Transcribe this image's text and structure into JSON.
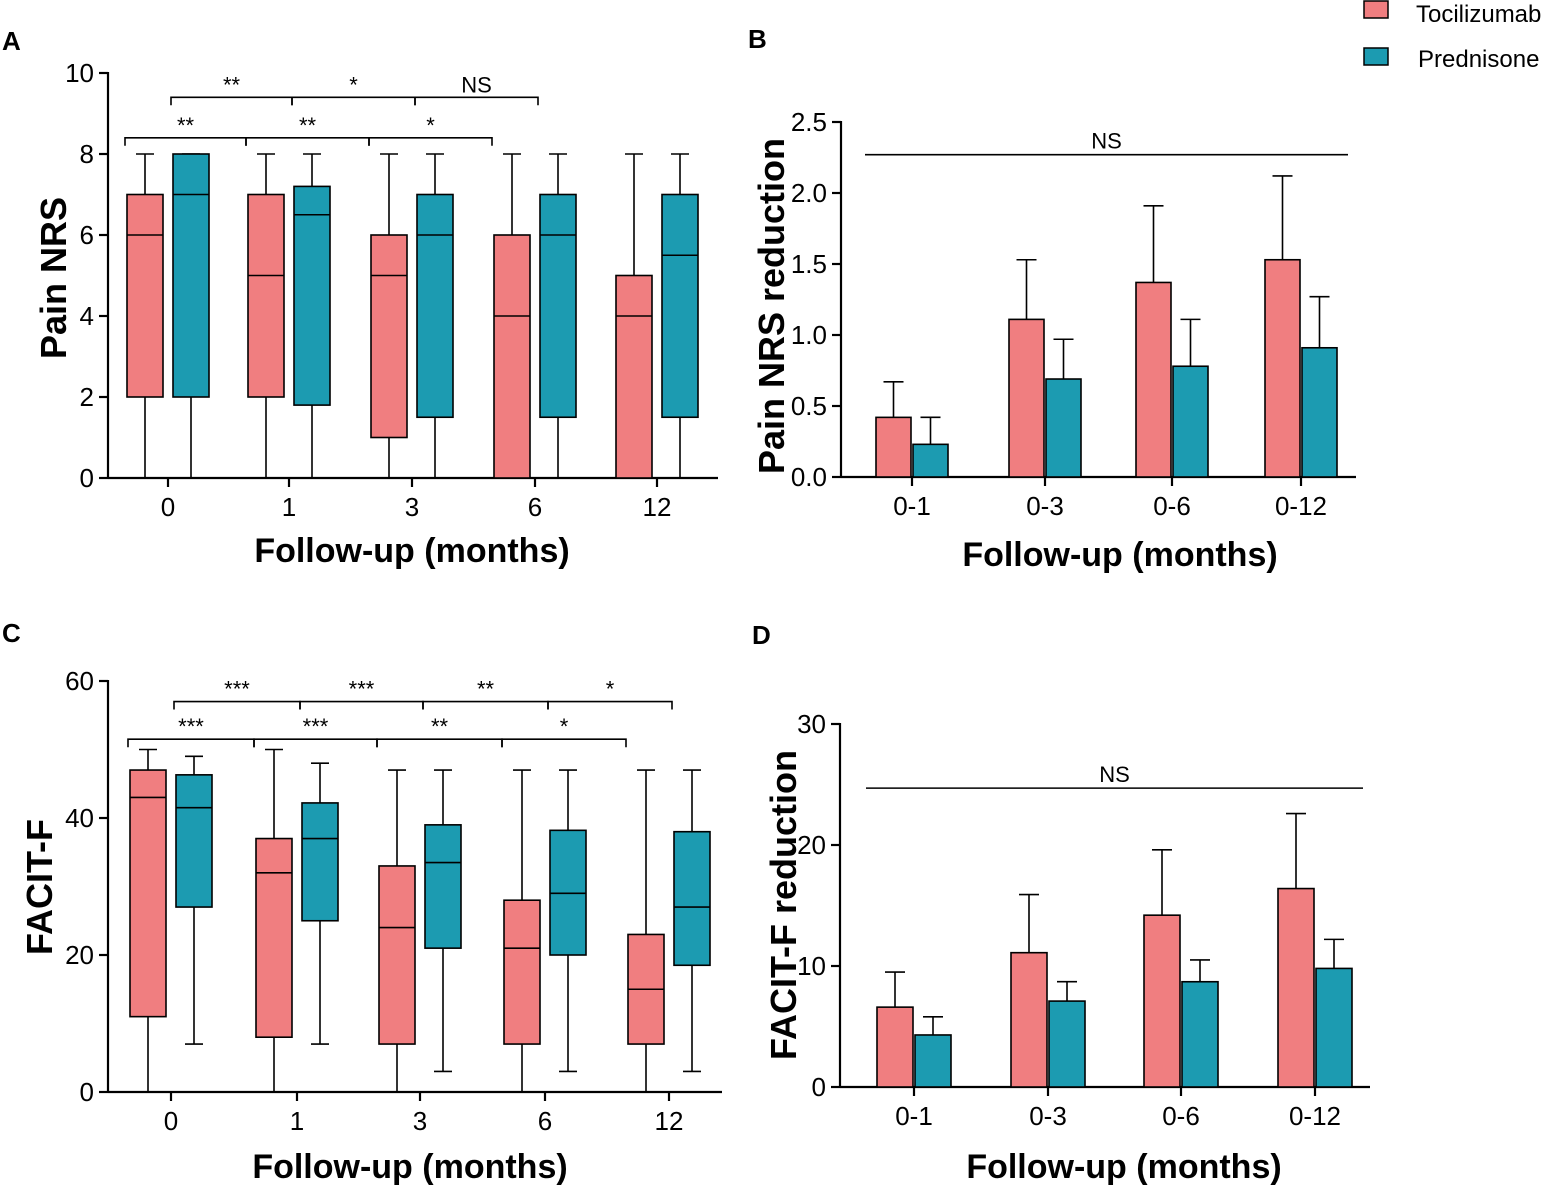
{
  "colors": {
    "tocilizumab": "#f07e80",
    "prednisone": "#1c9bb1",
    "stroke": "#000000"
  },
  "legend": {
    "items": [
      {
        "label": "Tocilizumab",
        "series": "tocilizumab"
      },
      {
        "label": "Prednisone",
        "series": "prednisone"
      }
    ]
  },
  "chart_data": [
    {
      "panel": "A",
      "type": "box",
      "ylabel": "Pain NRS",
      "xlabel": "Follow-up (months)",
      "ylim": [
        0,
        10
      ],
      "yticks": [
        0,
        2,
        4,
        6,
        8,
        10
      ],
      "categories": [
        "0",
        "1",
        "3",
        "6",
        "12"
      ],
      "series": [
        {
          "name": "Tocilizumab",
          "boxes": [
            {
              "min": 0,
              "q1": 2,
              "median": 6,
              "q3": 7,
              "max": 8
            },
            {
              "min": 0,
              "q1": 2,
              "median": 5,
              "q3": 7,
              "max": 8
            },
            {
              "min": 0,
              "q1": 1,
              "median": 5,
              "q3": 6,
              "max": 8
            },
            {
              "min": 0,
              "q1": 0,
              "median": 4,
              "q3": 6,
              "max": 8
            },
            {
              "min": 0,
              "q1": 0,
              "median": 4,
              "q3": 5,
              "max": 8
            }
          ]
        },
        {
          "name": "Prednisone",
          "boxes": [
            {
              "min": 0,
              "q1": 2,
              "median": 7,
              "q3": 8,
              "max": 8
            },
            {
              "min": 0,
              "q1": 1.8,
              "median": 6.5,
              "q3": 7.2,
              "max": 8
            },
            {
              "min": 0,
              "q1": 1.5,
              "median": 6,
              "q3": 7,
              "max": 8
            },
            {
              "min": 0,
              "q1": 1.5,
              "median": 6,
              "q3": 7,
              "max": 8
            },
            {
              "min": 0,
              "q1": 1.5,
              "median": 5.5,
              "q3": 7,
              "max": 8
            }
          ]
        }
      ],
      "significance": [
        {
          "from": [
            0,
            1
          ],
          "to": [
            1,
            1
          ],
          "level": 9.4,
          "label": "**"
        },
        {
          "from": [
            1,
            1
          ],
          "to": [
            2,
            1
          ],
          "level": 9.4,
          "label": "*"
        },
        {
          "from": [
            2,
            1
          ],
          "to": [
            3,
            1
          ],
          "level": 9.4,
          "label": "NS"
        },
        {
          "from": [
            0,
            0
          ],
          "to": [
            1,
            0
          ],
          "level": 8.4,
          "label": "**"
        },
        {
          "from": [
            1,
            0
          ],
          "to": [
            2,
            0
          ],
          "level": 8.4,
          "label": "**"
        },
        {
          "from": [
            2,
            0
          ],
          "to": [
            3,
            0
          ],
          "level": 8.4,
          "label": "*"
        }
      ]
    },
    {
      "panel": "B",
      "type": "bar",
      "ylabel": "Pain NRS reduction",
      "xlabel": "Follow-up (months)",
      "ylim": [
        0,
        2.5
      ],
      "yticks": [
        "0.0",
        "0.5",
        "1.0",
        "1.5",
        "2.0",
        "2.5"
      ],
      "categories": [
        "0-1",
        "0-3",
        "0-6",
        "0-12"
      ],
      "series": [
        {
          "name": "Tocilizumab",
          "values": [
            0.42,
            1.11,
            1.37,
            1.53
          ],
          "errors": [
            0.25,
            0.42,
            0.54,
            0.59
          ]
        },
        {
          "name": "Prednisone",
          "values": [
            0.23,
            0.69,
            0.78,
            0.91
          ],
          "errors": [
            0.19,
            0.28,
            0.33,
            0.36
          ]
        }
      ],
      "annotation": {
        "label": "NS",
        "level": 2.27
      }
    },
    {
      "panel": "C",
      "type": "box",
      "ylabel": "FACIT-F",
      "xlabel": "Follow-up (months)",
      "ylim": [
        0,
        60
      ],
      "yticks": [
        0,
        20,
        40,
        60
      ],
      "categories": [
        "0",
        "1",
        "3",
        "6",
        "12"
      ],
      "series": [
        {
          "name": "Tocilizumab",
          "boxes": [
            {
              "min": 0,
              "q1": 11,
              "median": 43,
              "q3": 47,
              "max": 50
            },
            {
              "min": 0,
              "q1": 8,
              "median": 32,
              "q3": 37,
              "max": 50
            },
            {
              "min": 0,
              "q1": 7,
              "median": 24,
              "q3": 33,
              "max": 47
            },
            {
              "min": 0,
              "q1": 7,
              "median": 21,
              "q3": 28,
              "max": 47
            },
            {
              "min": 0,
              "q1": 7,
              "median": 15,
              "q3": 23,
              "max": 47
            }
          ]
        },
        {
          "name": "Prednisone",
          "boxes": [
            {
              "min": 7,
              "q1": 27,
              "median": 41.5,
              "q3": 46.3,
              "max": 49
            },
            {
              "min": 7,
              "q1": 25,
              "median": 37,
              "q3": 42.2,
              "max": 48
            },
            {
              "min": 3,
              "q1": 21,
              "median": 33.5,
              "q3": 39,
              "max": 47
            },
            {
              "min": 3,
              "q1": 20,
              "median": 29,
              "q3": 38.2,
              "max": 47
            },
            {
              "min": 3,
              "q1": 18.5,
              "median": 27,
              "q3": 38,
              "max": 47
            }
          ]
        }
      ],
      "significance": [
        {
          "from": [
            0,
            1
          ],
          "to": [
            1,
            1
          ],
          "level": 57,
          "label": "***"
        },
        {
          "from": [
            1,
            1
          ],
          "to": [
            2,
            1
          ],
          "level": 57,
          "label": "***"
        },
        {
          "from": [
            2,
            1
          ],
          "to": [
            3,
            1
          ],
          "level": 57,
          "label": "**"
        },
        {
          "from": [
            3,
            1
          ],
          "to": [
            4,
            1
          ],
          "level": 57,
          "label": "*"
        },
        {
          "from": [
            0,
            0
          ],
          "to": [
            1,
            0
          ],
          "level": 51.5,
          "label": "***"
        },
        {
          "from": [
            1,
            0
          ],
          "to": [
            2,
            0
          ],
          "level": 51.5,
          "label": "***"
        },
        {
          "from": [
            2,
            0
          ],
          "to": [
            3,
            0
          ],
          "level": 51.5,
          "label": "**"
        },
        {
          "from": [
            3,
            0
          ],
          "to": [
            4,
            0
          ],
          "level": 51.5,
          "label": "*"
        }
      ]
    },
    {
      "panel": "D",
      "type": "bar",
      "ylabel": "FACIT-F reduction",
      "xlabel": "Follow-up (months)",
      "ylim": [
        0,
        30
      ],
      "yticks": [
        0,
        10,
        20,
        30
      ],
      "categories": [
        "0-1",
        "0-3",
        "0-6",
        "0-12"
      ],
      "series": [
        {
          "name": "Tocilizumab",
          "values": [
            6.6,
            11.1,
            14.2,
            16.4
          ],
          "errors": [
            2.9,
            4.8,
            5.4,
            6.2
          ]
        },
        {
          "name": "Prednisone",
          "values": [
            4.3,
            7.1,
            8.7,
            9.8
          ],
          "errors": [
            1.5,
            1.6,
            1.8,
            2.4
          ]
        }
      ],
      "annotation": {
        "label": "NS",
        "level": 24.7
      }
    }
  ]
}
